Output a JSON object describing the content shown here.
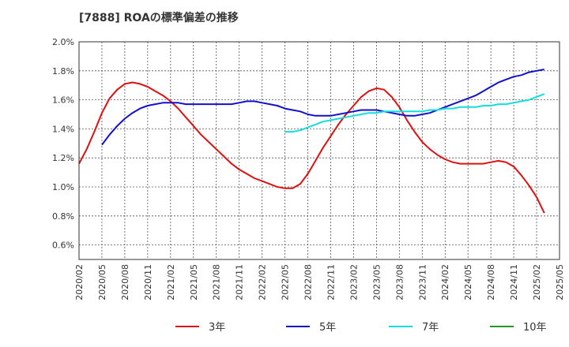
{
  "chart_data": {
    "type": "line",
    "title": "[7888]  ROAの標準偏差の推移",
    "xlabel": "",
    "ylabel": "",
    "ylim": [
      0.5,
      2.0
    ],
    "grid": true,
    "legend_position": "bottom",
    "x_ticks": [
      "2020/02",
      "2020/05",
      "2020/08",
      "2020/11",
      "2021/02",
      "2021/05",
      "2021/08",
      "2021/11",
      "2022/02",
      "2022/05",
      "2022/08",
      "2022/11",
      "2023/02",
      "2023/05",
      "2023/08",
      "2023/11",
      "2024/02",
      "2024/05",
      "2024/08",
      "2024/11",
      "2025/02",
      "2025/05"
    ],
    "y_ticks": [
      "0.6%",
      "0.8%",
      "1.0%",
      "1.2%",
      "1.4%",
      "1.6%",
      "1.8%",
      "2.0%"
    ],
    "y_tick_values": [
      0.6,
      0.8,
      1.0,
      1.2,
      1.4,
      1.6,
      1.8,
      2.0
    ],
    "series": [
      {
        "name": "3年",
        "color": "#dd1111",
        "points": [
          [
            "2020/02",
            1.16
          ],
          [
            "2020/03",
            1.26
          ],
          [
            "2020/04",
            1.38
          ],
          [
            "2020/05",
            1.51
          ],
          [
            "2020/06",
            1.61
          ],
          [
            "2020/07",
            1.67
          ],
          [
            "2020/08",
            1.71
          ],
          [
            "2020/09",
            1.72
          ],
          [
            "2020/10",
            1.71
          ],
          [
            "2020/11",
            1.69
          ],
          [
            "2020/12",
            1.66
          ],
          [
            "2021/01",
            1.63
          ],
          [
            "2021/02",
            1.59
          ],
          [
            "2021/03",
            1.54
          ],
          [
            "2021/04",
            1.48
          ],
          [
            "2021/05",
            1.42
          ],
          [
            "2021/06",
            1.36
          ],
          [
            "2021/07",
            1.31
          ],
          [
            "2021/08",
            1.26
          ],
          [
            "2021/09",
            1.21
          ],
          [
            "2021/10",
            1.16
          ],
          [
            "2021/11",
            1.12
          ],
          [
            "2021/12",
            1.09
          ],
          [
            "2022/01",
            1.06
          ],
          [
            "2022/02",
            1.04
          ],
          [
            "2022/03",
            1.02
          ],
          [
            "2022/04",
            1.0
          ],
          [
            "2022/05",
            0.99
          ],
          [
            "2022/06",
            0.99
          ],
          [
            "2022/07",
            1.02
          ],
          [
            "2022/08",
            1.09
          ],
          [
            "2022/09",
            1.18
          ],
          [
            "2022/10",
            1.27
          ],
          [
            "2022/11",
            1.35
          ],
          [
            "2022/12",
            1.43
          ],
          [
            "2023/01",
            1.5
          ],
          [
            "2023/02",
            1.56
          ],
          [
            "2023/03",
            1.62
          ],
          [
            "2023/04",
            1.66
          ],
          [
            "2023/05",
            1.68
          ],
          [
            "2023/06",
            1.67
          ],
          [
            "2023/07",
            1.62
          ],
          [
            "2023/08",
            1.55
          ],
          [
            "2023/09",
            1.46
          ],
          [
            "2023/10",
            1.38
          ],
          [
            "2023/11",
            1.31
          ],
          [
            "2023/12",
            1.26
          ],
          [
            "2024/01",
            1.22
          ],
          [
            "2024/02",
            1.19
          ],
          [
            "2024/03",
            1.17
          ],
          [
            "2024/04",
            1.16
          ],
          [
            "2024/05",
            1.16
          ],
          [
            "2024/06",
            1.16
          ],
          [
            "2024/07",
            1.16
          ],
          [
            "2024/08",
            1.17
          ],
          [
            "2024/09",
            1.18
          ],
          [
            "2024/10",
            1.17
          ],
          [
            "2024/11",
            1.14
          ],
          [
            "2024/12",
            1.08
          ],
          [
            "2025/01",
            1.01
          ],
          [
            "2025/02",
            0.93
          ],
          [
            "2025/03",
            0.82
          ]
        ]
      },
      {
        "name": "5年",
        "color": "#1111cc",
        "points": [
          [
            "2020/05",
            1.29
          ],
          [
            "2020/06",
            1.36
          ],
          [
            "2020/07",
            1.42
          ],
          [
            "2020/08",
            1.47
          ],
          [
            "2020/09",
            1.51
          ],
          [
            "2020/10",
            1.54
          ],
          [
            "2020/11",
            1.56
          ],
          [
            "2020/12",
            1.57
          ],
          [
            "2021/01",
            1.58
          ],
          [
            "2021/02",
            1.58
          ],
          [
            "2021/03",
            1.58
          ],
          [
            "2021/04",
            1.57
          ],
          [
            "2021/05",
            1.57
          ],
          [
            "2021/06",
            1.57
          ],
          [
            "2021/07",
            1.57
          ],
          [
            "2021/08",
            1.57
          ],
          [
            "2021/09",
            1.57
          ],
          [
            "2021/10",
            1.57
          ],
          [
            "2021/11",
            1.58
          ],
          [
            "2021/12",
            1.59
          ],
          [
            "2022/01",
            1.59
          ],
          [
            "2022/02",
            1.58
          ],
          [
            "2022/03",
            1.57
          ],
          [
            "2022/04",
            1.56
          ],
          [
            "2022/05",
            1.54
          ],
          [
            "2022/06",
            1.53
          ],
          [
            "2022/07",
            1.52
          ],
          [
            "2022/08",
            1.5
          ],
          [
            "2022/09",
            1.49
          ],
          [
            "2022/10",
            1.49
          ],
          [
            "2022/11",
            1.49
          ],
          [
            "2022/12",
            1.5
          ],
          [
            "2023/01",
            1.51
          ],
          [
            "2023/02",
            1.52
          ],
          [
            "2023/03",
            1.53
          ],
          [
            "2023/04",
            1.53
          ],
          [
            "2023/05",
            1.53
          ],
          [
            "2023/06",
            1.52
          ],
          [
            "2023/07",
            1.51
          ],
          [
            "2023/08",
            1.5
          ],
          [
            "2023/09",
            1.49
          ],
          [
            "2023/10",
            1.49
          ],
          [
            "2023/11",
            1.5
          ],
          [
            "2023/12",
            1.51
          ],
          [
            "2024/01",
            1.53
          ],
          [
            "2024/02",
            1.55
          ],
          [
            "2024/03",
            1.57
          ],
          [
            "2024/04",
            1.59
          ],
          [
            "2024/05",
            1.61
          ],
          [
            "2024/06",
            1.63
          ],
          [
            "2024/07",
            1.66
          ],
          [
            "2024/08",
            1.69
          ],
          [
            "2024/09",
            1.72
          ],
          [
            "2024/10",
            1.74
          ],
          [
            "2024/11",
            1.76
          ],
          [
            "2024/12",
            1.77
          ],
          [
            "2025/01",
            1.79
          ],
          [
            "2025/02",
            1.8
          ],
          [
            "2025/03",
            1.81
          ]
        ]
      },
      {
        "name": "7年",
        "color": "#11dddd",
        "points": [
          [
            "2022/05",
            1.38
          ],
          [
            "2022/06",
            1.38
          ],
          [
            "2022/07",
            1.39
          ],
          [
            "2022/08",
            1.41
          ],
          [
            "2022/09",
            1.43
          ],
          [
            "2022/10",
            1.45
          ],
          [
            "2022/11",
            1.46
          ],
          [
            "2022/12",
            1.47
          ],
          [
            "2023/01",
            1.48
          ],
          [
            "2023/02",
            1.49
          ],
          [
            "2023/03",
            1.5
          ],
          [
            "2023/04",
            1.51
          ],
          [
            "2023/05",
            1.51
          ],
          [
            "2023/06",
            1.52
          ],
          [
            "2023/07",
            1.52
          ],
          [
            "2023/08",
            1.52
          ],
          [
            "2023/09",
            1.52
          ],
          [
            "2023/10",
            1.52
          ],
          [
            "2023/11",
            1.52
          ],
          [
            "2023/12",
            1.53
          ],
          [
            "2024/01",
            1.53
          ],
          [
            "2024/02",
            1.54
          ],
          [
            "2024/03",
            1.54
          ],
          [
            "2024/04",
            1.55
          ],
          [
            "2024/05",
            1.55
          ],
          [
            "2024/06",
            1.55
          ],
          [
            "2024/07",
            1.56
          ],
          [
            "2024/08",
            1.56
          ],
          [
            "2024/09",
            1.57
          ],
          [
            "2024/10",
            1.57
          ],
          [
            "2024/11",
            1.58
          ],
          [
            "2024/12",
            1.59
          ],
          [
            "2025/01",
            1.6
          ],
          [
            "2025/02",
            1.62
          ],
          [
            "2025/03",
            1.64
          ]
        ]
      },
      {
        "name": "10年",
        "color": "#229922",
        "points": []
      }
    ]
  }
}
